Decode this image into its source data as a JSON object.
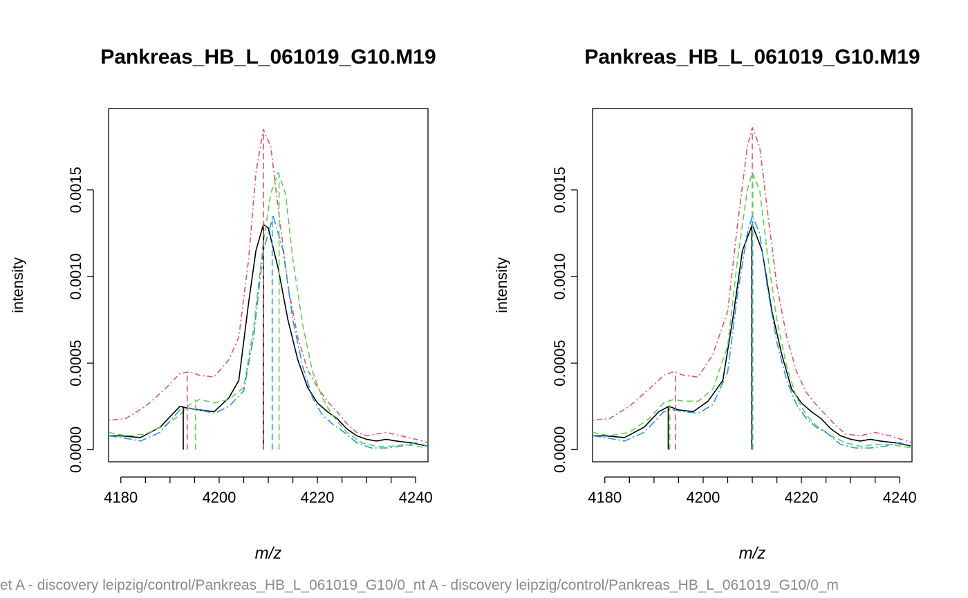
{
  "footer": {
    "left_text": "et A - discovery leipzig/control/Pankreas_HB_L_061019_G10/0_nt A - discovery leipzig/control/Pankreas_HB_L_061019_G10/0_m"
  },
  "colors": {
    "series1": "#000000",
    "series2": "#DF536B",
    "series3": "#61D04F",
    "series4": "#2297E6",
    "footer_text": "#8a8a8a"
  },
  "chart_data": [
    {
      "type": "line",
      "title": "Pankreas_HB_L_061019_G10.M19",
      "xlabel": "m/z",
      "ylabel": "intensity",
      "xlim": [
        4177.5,
        4242.5
      ],
      "ylim": [
        -7e-05,
        0.00197
      ],
      "x_ticks": [
        4180,
        4200,
        4220,
        4240
      ],
      "x_tick_labels": [
        "4180",
        "4200",
        "4220",
        "4240"
      ],
      "y_ticks": [
        0,
        0.0005,
        0.001,
        0.0015
      ],
      "y_tick_labels": [
        "0.0000",
        "0.0005",
        "0.0010",
        "0.0015"
      ],
      "grid": false,
      "series": [
        {
          "color": "#000000",
          "linestyle": "solid",
          "points": [
            [
              4177.5,
              8e-05
            ],
            [
              4180,
              8e-05
            ],
            [
              4184,
              7e-05
            ],
            [
              4188,
              0.00013
            ],
            [
              4192,
              0.00025
            ],
            [
              4193.5,
              0.00024
            ],
            [
              4196,
              0.00023
            ],
            [
              4199,
              0.00022
            ],
            [
              4202,
              0.0003
            ],
            [
              4204,
              0.0004
            ],
            [
              4206,
              0.00085
            ],
            [
              4207.5,
              0.00115
            ],
            [
              4209,
              0.0013
            ],
            [
              4210,
              0.00128
            ],
            [
              4212,
              0.00105
            ],
            [
              4214,
              0.00075
            ],
            [
              4216,
              0.00052
            ],
            [
              4218,
              0.00036
            ],
            [
              4220,
              0.00027
            ],
            [
              4222,
              0.00022
            ],
            [
              4224,
              0.00018
            ],
            [
              4226,
              0.00012
            ],
            [
              4228,
              8e-05
            ],
            [
              4230,
              6e-05
            ],
            [
              4232,
              5e-05
            ],
            [
              4234,
              6e-05
            ],
            [
              4236,
              5e-05
            ],
            [
              4239,
              4e-05
            ],
            [
              4242.5,
              2e-05
            ]
          ]
        },
        {
          "color": "#DF536B",
          "linestyle": "dotdash",
          "points": [
            [
              4177.5,
              0.00017
            ],
            [
              4181,
              0.00018
            ],
            [
              4185,
              0.00025
            ],
            [
              4189,
              0.00035
            ],
            [
              4192,
              0.00044
            ],
            [
              4194,
              0.00045
            ],
            [
              4196,
              0.00043
            ],
            [
              4199,
              0.00042
            ],
            [
              4202,
              0.00052
            ],
            [
              4204,
              0.00065
            ],
            [
              4206,
              0.0011
            ],
            [
              4207.5,
              0.0016
            ],
            [
              4209,
              0.00185
            ],
            [
              4210.5,
              0.00175
            ],
            [
              4212,
              0.0014
            ],
            [
              4214,
              0.00095
            ],
            [
              4216,
              0.00065
            ],
            [
              4218,
              0.00046
            ],
            [
              4220,
              0.00036
            ],
            [
              4222,
              0.00028
            ],
            [
              4224,
              0.00022
            ],
            [
              4226,
              0.00015
            ],
            [
              4228,
              0.0001
            ],
            [
              4230,
              8e-05
            ],
            [
              4232,
              9e-05
            ],
            [
              4234,
              0.0001
            ],
            [
              4237,
              8e-05
            ],
            [
              4240,
              6e-05
            ],
            [
              4242.5,
              4e-05
            ]
          ]
        },
        {
          "color": "#61D04F",
          "linestyle": "dashed",
          "points": [
            [
              4177.5,
              0.0001
            ],
            [
              4181,
              8e-05
            ],
            [
              4185,
              9e-05
            ],
            [
              4189,
              0.00014
            ],
            [
              4192,
              0.0002
            ],
            [
              4194,
              0.00026
            ],
            [
              4196,
              0.00029
            ],
            [
              4199,
              0.00027
            ],
            [
              4202,
              0.00029
            ],
            [
              4205,
              0.00036
            ],
            [
              4207,
              0.0007
            ],
            [
              4209,
              0.0012
            ],
            [
              4210.5,
              0.00148
            ],
            [
              4212,
              0.0016
            ],
            [
              4213.5,
              0.00148
            ],
            [
              4215,
              0.0011
            ],
            [
              4217,
              0.00072
            ],
            [
              4219,
              0.00045
            ],
            [
              4221,
              0.0003
            ],
            [
              4223,
              0.0002
            ],
            [
              4226,
              0.0001
            ],
            [
              4229,
              4e-05
            ],
            [
              4232,
              2e-05
            ],
            [
              4235,
              2e-05
            ],
            [
              4238,
              3e-05
            ],
            [
              4242.5,
              1e-05
            ]
          ]
        },
        {
          "color": "#2297E6",
          "linestyle": "longdash-dot",
          "points": [
            [
              4177.5,
              8e-05
            ],
            [
              4180,
              7e-05
            ],
            [
              4184,
              5e-05
            ],
            [
              4188,
              0.0001
            ],
            [
              4192,
              0.00023
            ],
            [
              4194,
              0.00024
            ],
            [
              4196,
              0.00023
            ],
            [
              4199,
              0.00021
            ],
            [
              4202,
              0.00025
            ],
            [
              4205,
              0.00034
            ],
            [
              4207,
              0.00065
            ],
            [
              4209,
              0.00115
            ],
            [
              4211,
              0.00135
            ],
            [
              4213,
              0.00115
            ],
            [
              4215,
              0.00075
            ],
            [
              4217,
              0.00048
            ],
            [
              4219,
              0.0003
            ],
            [
              4221,
              0.0002
            ],
            [
              4223,
              0.00015
            ],
            [
              4225,
              0.00011
            ],
            [
              4228,
              4e-05
            ],
            [
              4231,
              1e-05
            ],
            [
              4234,
              1e-05
            ],
            [
              4237,
              2e-05
            ],
            [
              4240,
              4e-05
            ],
            [
              4242.5,
              2e-05
            ]
          ]
        }
      ],
      "peaks": [
        {
          "color": "#000000",
          "x": 4192.7,
          "y": 0.00025
        },
        {
          "color": "#000000",
          "x": 4209.0,
          "y": 0.0013
        },
        {
          "color": "#DF536B",
          "x": 4193.5,
          "y": 0.00045
        },
        {
          "color": "#DF536B",
          "x": 4209.0,
          "y": 0.00185
        },
        {
          "color": "#61D04F",
          "x": 4195.2,
          "y": 0.00029
        },
        {
          "color": "#61D04F",
          "x": 4212.2,
          "y": 0.00159
        },
        {
          "color": "#2297E6",
          "x": 4210.8,
          "y": 0.00135
        }
      ]
    },
    {
      "type": "line",
      "title": "Pankreas_HB_L_061019_G10.M19",
      "xlabel": "m/z",
      "ylabel": "intensity",
      "xlim": [
        4177.5,
        4242.5
      ],
      "ylim": [
        -7e-05,
        0.00197
      ],
      "x_ticks": [
        4180,
        4200,
        4220,
        4240
      ],
      "x_tick_labels": [
        "4180",
        "4200",
        "4220",
        "4240"
      ],
      "y_ticks": [
        0,
        0.0005,
        0.001,
        0.0015
      ],
      "y_tick_labels": [
        "0.0000",
        "0.0005",
        "0.0010",
        "0.0015"
      ],
      "grid": false,
      "series": [
        {
          "color": "#000000",
          "linestyle": "solid",
          "points": [
            [
              4177.5,
              8e-05
            ],
            [
              4180,
              8e-05
            ],
            [
              4184,
              7e-05
            ],
            [
              4188,
              0.00013
            ],
            [
              4191,
              0.00022
            ],
            [
              4193,
              0.00025
            ],
            [
              4195,
              0.00023
            ],
            [
              4198,
              0.00022
            ],
            [
              4201,
              0.00028
            ],
            [
              4204,
              0.0004
            ],
            [
              4206,
              0.00075
            ],
            [
              4208,
              0.00115
            ],
            [
              4210,
              0.0013
            ],
            [
              4212,
              0.00115
            ],
            [
              4214,
              0.0008
            ],
            [
              4216,
              0.00055
            ],
            [
              4218,
              0.00035
            ],
            [
              4220,
              0.00027
            ],
            [
              4222,
              0.00022
            ],
            [
              4224,
              0.00018
            ],
            [
              4226,
              0.00012
            ],
            [
              4228,
              8e-05
            ],
            [
              4230,
              6e-05
            ],
            [
              4232,
              5e-05
            ],
            [
              4234,
              6e-05
            ],
            [
              4236,
              5e-05
            ],
            [
              4239,
              4e-05
            ],
            [
              4242.5,
              2e-05
            ]
          ]
        },
        {
          "color": "#DF536B",
          "linestyle": "dotdash",
          "points": [
            [
              4177.5,
              0.00017
            ],
            [
              4181,
              0.00018
            ],
            [
              4185,
              0.00025
            ],
            [
              4189,
              0.00035
            ],
            [
              4192,
              0.00043
            ],
            [
              4194,
              0.00045
            ],
            [
              4196,
              0.00043
            ],
            [
              4199,
              0.00042
            ],
            [
              4202,
              0.00055
            ],
            [
              4205,
              0.0008
            ],
            [
              4207,
              0.0013
            ],
            [
              4209,
              0.00175
            ],
            [
              4210,
              0.00186
            ],
            [
              4211.5,
              0.00175
            ],
            [
              4213,
              0.0014
            ],
            [
              4215,
              0.00095
            ],
            [
              4217,
              0.00065
            ],
            [
              4219,
              0.00045
            ],
            [
              4221,
              0.00033
            ],
            [
              4223,
              0.00026
            ],
            [
              4225,
              0.0002
            ],
            [
              4227,
              0.00014
            ],
            [
              4229,
              9e-05
            ],
            [
              4232,
              8e-05
            ],
            [
              4235,
              0.0001
            ],
            [
              4238,
              8e-05
            ],
            [
              4242.5,
              4e-05
            ]
          ]
        },
        {
          "color": "#61D04F",
          "linestyle": "dashed",
          "points": [
            [
              4177.5,
              0.0001
            ],
            [
              4181,
              8e-05
            ],
            [
              4185,
              0.0001
            ],
            [
              4189,
              0.00018
            ],
            [
              4192,
              0.00027
            ],
            [
              4194,
              0.00029
            ],
            [
              4196,
              0.00028
            ],
            [
              4199,
              0.00028
            ],
            [
              4202,
              0.00035
            ],
            [
              4205,
              0.0006
            ],
            [
              4207,
              0.0011
            ],
            [
              4209,
              0.0015
            ],
            [
              4210,
              0.0016
            ],
            [
              4211.5,
              0.0015
            ],
            [
              4213,
              0.00115
            ],
            [
              4215,
              0.00075
            ],
            [
              4217,
              0.00048
            ],
            [
              4219,
              0.0003
            ],
            [
              4221,
              0.0002
            ],
            [
              4223,
              0.00014
            ],
            [
              4226,
              8e-05
            ],
            [
              4229,
              4e-05
            ],
            [
              4232,
              2e-05
            ],
            [
              4235,
              3e-05
            ],
            [
              4238,
              3e-05
            ],
            [
              4242.5,
              1e-05
            ]
          ]
        },
        {
          "color": "#2297E6",
          "linestyle": "longdash-dot",
          "points": [
            [
              4177.5,
              8e-05
            ],
            [
              4180,
              7e-05
            ],
            [
              4184,
              5e-05
            ],
            [
              4188,
              0.0001
            ],
            [
              4192,
              0.00022
            ],
            [
              4194,
              0.00023
            ],
            [
              4196,
              0.00022
            ],
            [
              4199,
              0.00021
            ],
            [
              4202,
              0.00026
            ],
            [
              4205,
              0.00045
            ],
            [
              4207,
              0.0009
            ],
            [
              4209,
              0.00125
            ],
            [
              4210,
              0.00135
            ],
            [
              4211.5,
              0.00125
            ],
            [
              4213,
              0.00095
            ],
            [
              4215,
              0.00062
            ],
            [
              4217,
              0.0004
            ],
            [
              4219,
              0.00026
            ],
            [
              4221,
              0.00018
            ],
            [
              4223,
              0.00013
            ],
            [
              4225,
              0.0001
            ],
            [
              4228,
              3e-05
            ],
            [
              4231,
              1e-05
            ],
            [
              4234,
              1e-05
            ],
            [
              4237,
              2e-05
            ],
            [
              4240,
              4e-05
            ],
            [
              4242.5,
              2e-05
            ]
          ]
        }
      ],
      "peaks": [
        {
          "color": "#000000",
          "x": 4192.9,
          "y": 0.00025
        },
        {
          "color": "#000000",
          "x": 4209.9,
          "y": 0.0013
        },
        {
          "color": "#DF536B",
          "x": 4194.4,
          "y": 0.00045
        },
        {
          "color": "#DF536B",
          "x": 4210.0,
          "y": 0.00185
        },
        {
          "color": "#61D04F",
          "x": 4193.2,
          "y": 0.00029
        },
        {
          "color": "#61D04F",
          "x": 4210.1,
          "y": 0.00159
        },
        {
          "color": "#2297E6",
          "x": 4210.0,
          "y": 0.00135
        }
      ]
    }
  ]
}
